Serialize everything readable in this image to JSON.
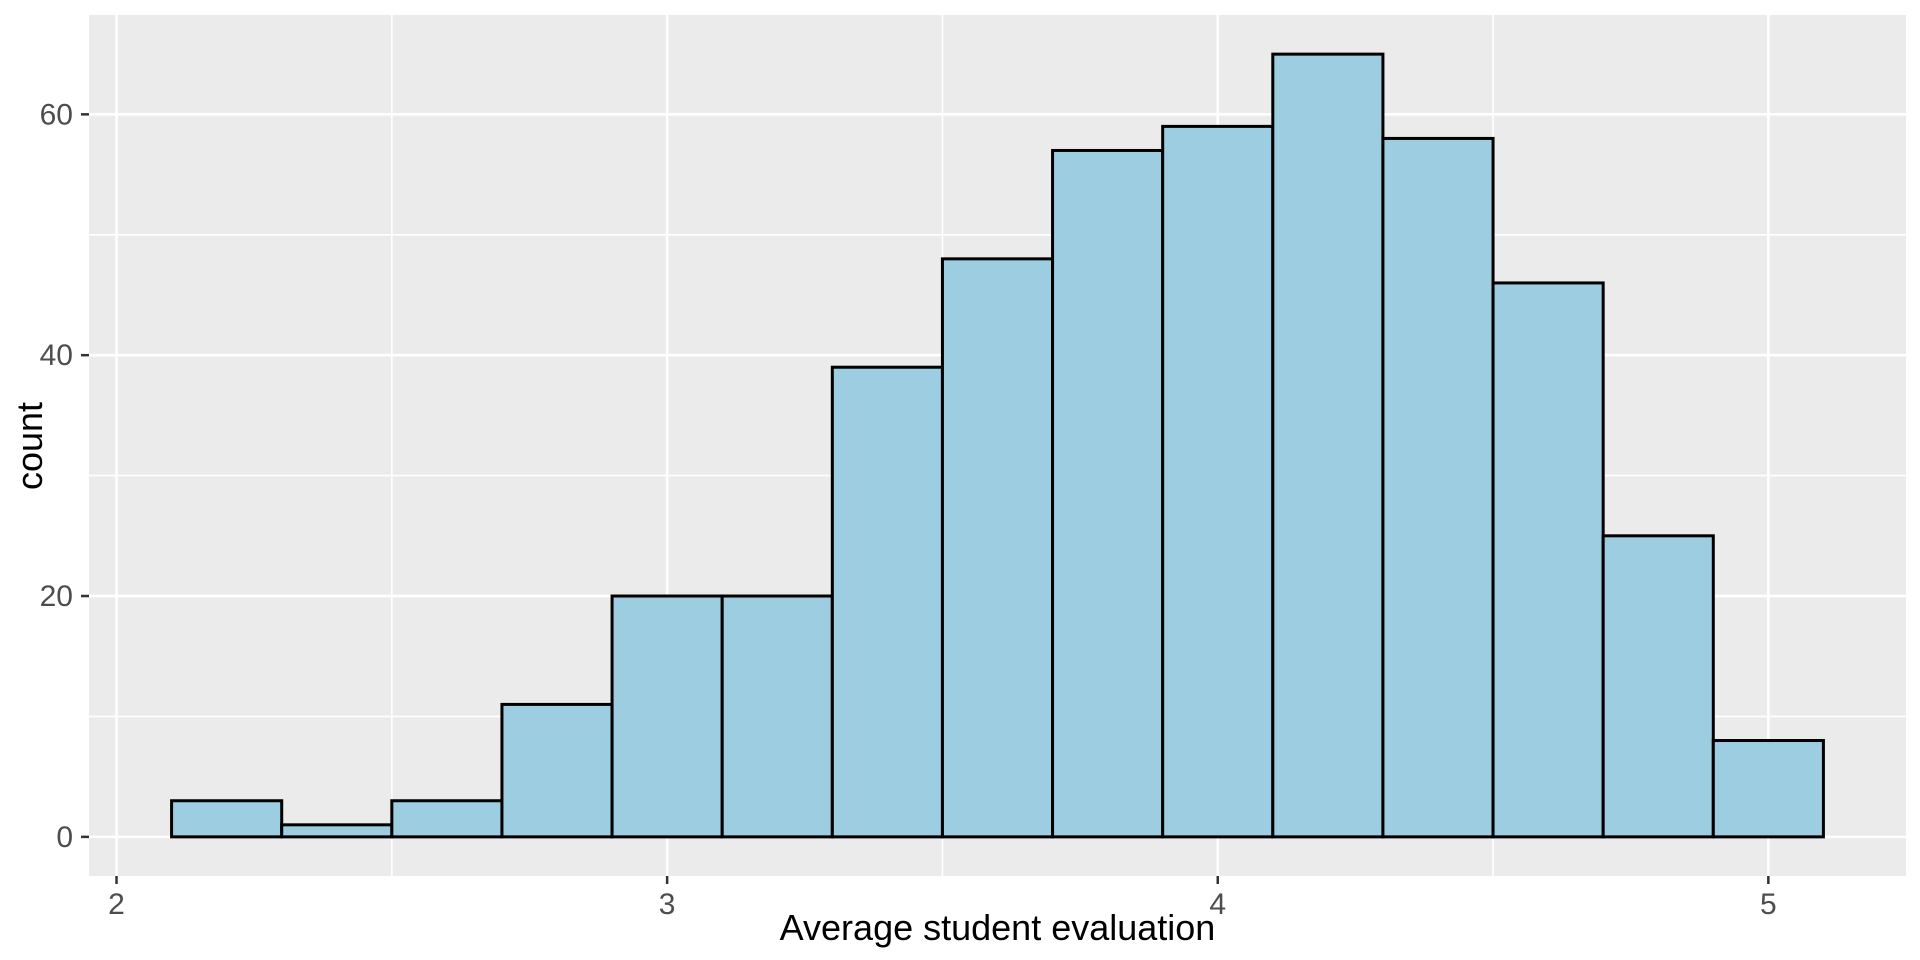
{
  "chart_data": {
    "type": "bar",
    "subtype": "histogram",
    "title": "",
    "xlabel": "Average student evaluation",
    "ylabel": "count",
    "bin_start": 2.1,
    "bin_width": 0.2,
    "bin_edges": [
      2.1,
      2.3,
      2.5,
      2.7,
      2.9,
      3.1,
      3.3,
      3.5,
      3.7,
      3.9,
      4.1,
      4.3,
      4.5,
      4.7,
      4.9,
      5.1
    ],
    "counts": [
      3,
      1,
      3,
      11,
      20,
      20,
      39,
      48,
      57,
      59,
      65,
      58,
      46,
      25,
      8
    ],
    "x_major_ticks": [
      2,
      3,
      4,
      5
    ],
    "x_tick_labels": [
      "2",
      "3",
      "4",
      "5"
    ],
    "x_minor_ticks": [
      2.5,
      3.5,
      4.5
    ],
    "y_major_ticks": [
      0,
      20,
      40,
      60
    ],
    "y_tick_labels": [
      "0",
      "20",
      "40",
      "60"
    ],
    "y_minor_ticks": [
      10,
      30,
      50
    ],
    "xlim": [
      1.95,
      5.25
    ],
    "ylim": [
      -3.25,
      68.25
    ],
    "grid": "on",
    "legend": "none",
    "colors": {
      "bar_fill": "#9DCDE0",
      "bar_stroke": "#000000",
      "panel_background": "#EBEBEB",
      "gridline": "#FFFFFF",
      "tick_mark": "#333333",
      "tick_label": "#4D4D4D",
      "axis_title": "#000000"
    }
  }
}
